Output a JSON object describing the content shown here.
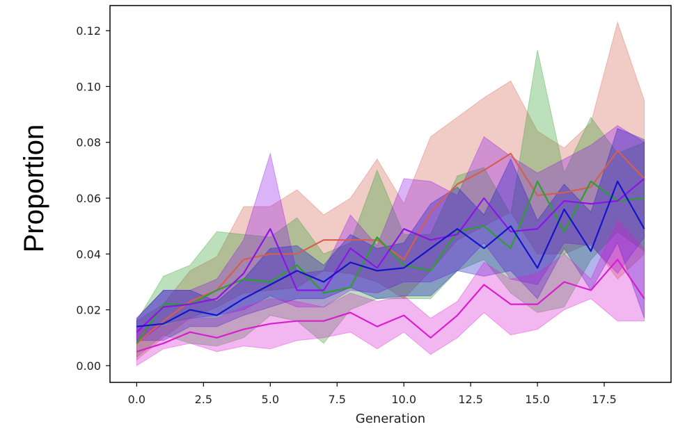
{
  "chart_data": {
    "type": "line",
    "xlabel": "Generation",
    "ylabel": "Proportion",
    "xlim": [
      -1.0,
      20.0
    ],
    "ylim": [
      -0.006,
      0.129
    ],
    "xticks": [
      0.0,
      2.5,
      5.0,
      7.5,
      10.0,
      12.5,
      15.0,
      17.5
    ],
    "xtick_labels": [
      "0.0",
      "2.5",
      "5.0",
      "7.5",
      "10.0",
      "12.5",
      "15.0",
      "17.5"
    ],
    "yticks": [
      0.0,
      0.02,
      0.04,
      0.06,
      0.08,
      0.1,
      0.12
    ],
    "ytick_labels": [
      "0.00",
      "0.02",
      "0.04",
      "0.06",
      "0.08",
      "0.10",
      "0.12"
    ],
    "grid": false,
    "x": [
      0,
      1,
      2,
      3,
      4,
      5,
      6,
      7,
      8,
      9,
      10,
      11,
      12,
      13,
      14,
      15,
      16,
      17,
      18,
      19
    ],
    "series": [
      {
        "color": "#d35f4e",
        "values": [
          0.008,
          0.016,
          0.023,
          0.027,
          0.038,
          0.04,
          0.04,
          0.045,
          0.045,
          0.045,
          0.038,
          0.055,
          0.065,
          0.07,
          0.076,
          0.061,
          0.062,
          0.064,
          0.077,
          0.067
        ],
        "lower": [
          0.002,
          0.01,
          0.017,
          0.021,
          0.026,
          0.027,
          0.028,
          0.034,
          0.033,
          0.03,
          0.024,
          0.034,
          0.045,
          0.05,
          0.055,
          0.04,
          0.04,
          0.044,
          0.031,
          0.04
        ],
        "upper": [
          0.016,
          0.022,
          0.034,
          0.039,
          0.057,
          0.057,
          0.063,
          0.054,
          0.06,
          0.074,
          0.058,
          0.082,
          0.089,
          0.096,
          0.102,
          0.084,
          0.078,
          0.087,
          0.123,
          0.095
        ]
      },
      {
        "color": "#2ca02c",
        "values": [
          0.008,
          0.022,
          0.022,
          0.027,
          0.031,
          0.03,
          0.036,
          0.026,
          0.028,
          0.046,
          0.036,
          0.034,
          0.048,
          0.05,
          0.042,
          0.066,
          0.048,
          0.066,
          0.059,
          0.06
        ],
        "lower": [
          0.003,
          0.011,
          0.008,
          0.007,
          0.01,
          0.018,
          0.016,
          0.008,
          0.02,
          0.024,
          0.024,
          0.024,
          0.034,
          0.038,
          0.026,
          0.019,
          0.021,
          0.038,
          0.048,
          0.041
        ],
        "upper": [
          0.016,
          0.032,
          0.036,
          0.048,
          0.047,
          0.046,
          0.053,
          0.04,
          0.044,
          0.07,
          0.047,
          0.047,
          0.068,
          0.071,
          0.054,
          0.113,
          0.069,
          0.089,
          0.076,
          0.08
        ]
      },
      {
        "color": "#8b14e8",
        "values": [
          0.012,
          0.021,
          0.022,
          0.024,
          0.033,
          0.049,
          0.027,
          0.027,
          0.042,
          0.035,
          0.049,
          0.045,
          0.047,
          0.06,
          0.048,
          0.049,
          0.059,
          0.058,
          0.059,
          0.067
        ],
        "lower": [
          0.008,
          0.015,
          0.017,
          0.018,
          0.02,
          0.025,
          0.021,
          0.021,
          0.027,
          0.026,
          0.03,
          0.03,
          0.034,
          0.044,
          0.031,
          0.029,
          0.044,
          0.043,
          0.033,
          0.046
        ],
        "upper": [
          0.017,
          0.027,
          0.027,
          0.031,
          0.045,
          0.076,
          0.033,
          0.034,
          0.054,
          0.043,
          0.067,
          0.066,
          0.061,
          0.082,
          0.075,
          0.069,
          0.074,
          0.079,
          0.086,
          0.08
        ]
      },
      {
        "color": "#1414c8",
        "values": [
          0.014,
          0.015,
          0.02,
          0.018,
          0.024,
          0.029,
          0.034,
          0.03,
          0.037,
          0.034,
          0.035,
          0.042,
          0.049,
          0.042,
          0.05,
          0.035,
          0.056,
          0.041,
          0.066,
          0.049
        ],
        "lower": [
          0.009,
          0.009,
          0.014,
          0.014,
          0.018,
          0.021,
          0.024,
          0.024,
          0.028,
          0.024,
          0.025,
          0.025,
          0.034,
          0.032,
          0.034,
          0.024,
          0.042,
          0.027,
          0.044,
          0.017
        ],
        "upper": [
          0.017,
          0.027,
          0.027,
          0.023,
          0.031,
          0.042,
          0.043,
          0.036,
          0.047,
          0.042,
          0.044,
          0.058,
          0.064,
          0.054,
          0.074,
          0.052,
          0.065,
          0.055,
          0.085,
          0.081
        ]
      },
      {
        "color": "#d81ecf",
        "values": [
          0.005,
          0.008,
          0.012,
          0.01,
          0.013,
          0.015,
          0.016,
          0.016,
          0.019,
          0.014,
          0.018,
          0.01,
          0.018,
          0.029,
          0.022,
          0.022,
          0.03,
          0.027,
          0.038,
          0.024
        ],
        "lower": [
          0.0,
          0.006,
          0.008,
          0.005,
          0.007,
          0.006,
          0.009,
          0.01,
          0.012,
          0.006,
          0.012,
          0.004,
          0.01,
          0.019,
          0.011,
          0.013,
          0.02,
          0.024,
          0.016,
          0.016
        ],
        "upper": [
          0.013,
          0.014,
          0.017,
          0.017,
          0.021,
          0.024,
          0.023,
          0.021,
          0.026,
          0.023,
          0.025,
          0.017,
          0.023,
          0.037,
          0.031,
          0.033,
          0.04,
          0.031,
          0.052,
          0.042
        ]
      }
    ]
  }
}
